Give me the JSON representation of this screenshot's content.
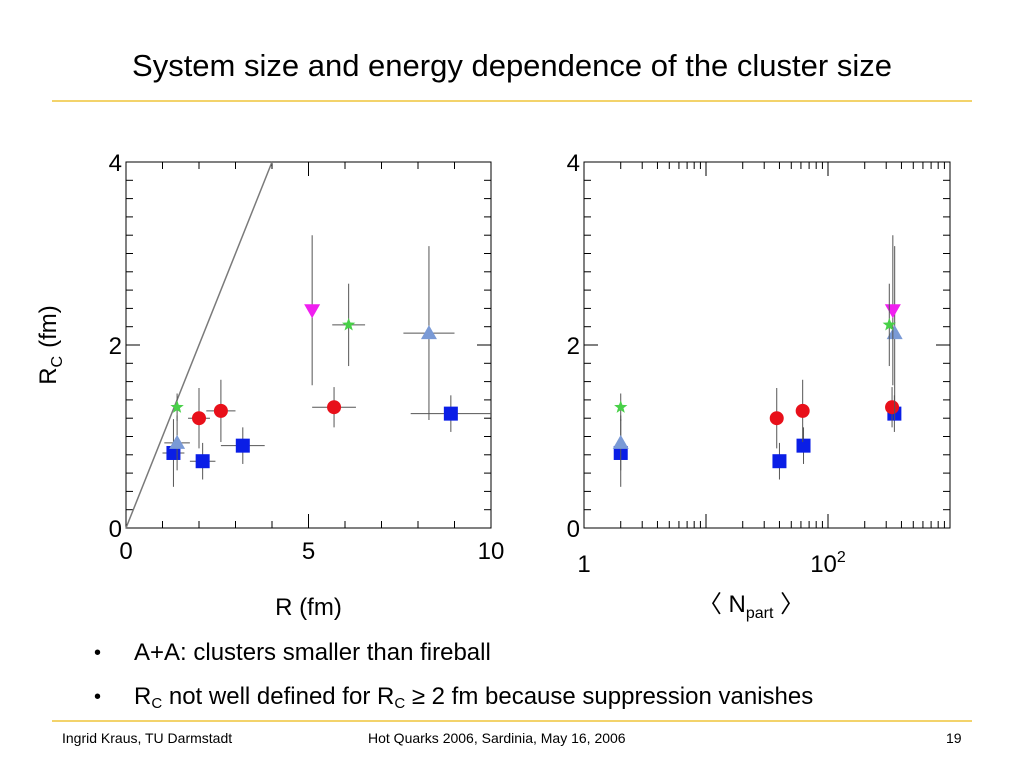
{
  "slide": {
    "title": "System size and energy dependence of the cluster size",
    "bullets": [
      {
        "text": "A+A: clusters smaller than fireball"
      },
      {
        "pre": "R",
        "sub": "C",
        "mid": " not well defined for R",
        "sub2": "C",
        "post": " ≥ 2 fm because suppression vanishes"
      }
    ],
    "bullet_symbol": "•",
    "footer": {
      "author": "Ingrid Kraus, TU Darmstadt",
      "event": "Hot Quarks 2006, Sardinia, May 16, 2006",
      "page": "19"
    },
    "rule_color": "#f3d36b"
  },
  "chart_data": [
    {
      "type": "scatter",
      "ylabel": {
        "main": "R",
        "sub": "C",
        "rest": "(fm)"
      },
      "xlabel": "R (fm)",
      "xlim": [
        0,
        10
      ],
      "ylim": [
        0,
        4
      ],
      "xticks": [
        "0",
        "5",
        "10"
      ],
      "yticks": [
        "0",
        "2",
        "4"
      ],
      "reference_line": {
        "from": [
          0,
          0
        ],
        "to": [
          4,
          4
        ]
      },
      "series": [
        {
          "marker": "square",
          "color": "#0a1ee6",
          "points": [
            {
              "x": 1.3,
              "y": 0.82,
              "xerr": 0.3,
              "yerr": 0.37
            },
            {
              "x": 2.1,
              "y": 0.73,
              "xerr": 0.35,
              "yerr": 0.2
            },
            {
              "x": 3.2,
              "y": 0.9,
              "xerr": 0.6,
              "yerr": 0.2
            },
            {
              "x": 8.9,
              "y": 1.25,
              "xerr": 1.1,
              "yerr": 0.2
            }
          ]
        },
        {
          "marker": "circle",
          "color": "#e8101a",
          "points": [
            {
              "x": 2.0,
              "y": 1.2,
              "xerr": 0.3,
              "yerr": 0.33
            },
            {
              "x": 2.6,
              "y": 1.28,
              "xerr": 0.4,
              "yerr": 0.34
            },
            {
              "x": 5.7,
              "y": 1.32,
              "xerr": 0.6,
              "yerr": 0.22
            }
          ]
        },
        {
          "marker": "triangle-up",
          "color": "#7a9ad6",
          "points": [
            {
              "x": 1.4,
              "y": 0.93,
              "xerr": 0.35,
              "yerr": 0.3
            },
            {
              "x": 8.3,
              "y": 2.13,
              "xerr": 0.7,
              "yerr": 0.95
            }
          ]
        },
        {
          "marker": "triangle-down",
          "color": "#f01ff0",
          "points": [
            {
              "x": 5.1,
              "y": 2.38,
              "xerr": 0.0,
              "yerr": 0.82
            }
          ]
        },
        {
          "marker": "star",
          "color": "#48d048",
          "points": [
            {
              "x": 1.4,
              "y": 1.32,
              "xerr": 0.0,
              "yerr": 0.15
            },
            {
              "x": 6.1,
              "y": 2.22,
              "xerr": 0.45,
              "yerr": 0.45
            }
          ]
        }
      ]
    },
    {
      "type": "scatter",
      "xscale": "log",
      "xlabel": {
        "pre": "〈 N",
        "sub": "part",
        "post": " 〉"
      },
      "xlim": [
        1,
        1000
      ],
      "ylim": [
        0,
        4
      ],
      "xticks": [
        {
          "label": "1",
          "value": 1
        },
        {
          "label": "10",
          "sup": "2",
          "value": 100
        }
      ],
      "yticks": [
        "0",
        "2",
        "4"
      ],
      "series": [
        {
          "marker": "square",
          "color": "#0a1ee6",
          "points": [
            {
              "x": 2.0,
              "y": 0.82,
              "yerr": 0.37
            },
            {
              "x": 40,
              "y": 0.73,
              "yerr": 0.2
            },
            {
              "x": 63,
              "y": 0.9,
              "yerr": 0.2
            },
            {
              "x": 350,
              "y": 1.25,
              "yerr": 0.2
            }
          ]
        },
        {
          "marker": "circle",
          "color": "#e8101a",
          "points": [
            {
              "x": 38,
              "y": 1.2,
              "yerr": 0.33
            },
            {
              "x": 62,
              "y": 1.28,
              "yerr": 0.34
            },
            {
              "x": 335,
              "y": 1.32,
              "yerr": 0.22
            }
          ]
        },
        {
          "marker": "triangle-up",
          "color": "#7a9ad6",
          "points": [
            {
              "x": 2.0,
              "y": 0.93,
              "yerr": 0.3
            },
            {
              "x": 352,
              "y": 2.13,
              "yerr": 0.95
            }
          ]
        },
        {
          "marker": "triangle-down",
          "color": "#f01ff0",
          "points": [
            {
              "x": 340,
              "y": 2.38,
              "yerr": 0.82
            }
          ]
        },
        {
          "marker": "star",
          "color": "#48d048",
          "points": [
            {
              "x": 2.0,
              "y": 1.32,
              "yerr": 0.15
            },
            {
              "x": 318,
              "y": 2.22,
              "yerr": 0.45
            }
          ]
        }
      ]
    }
  ]
}
